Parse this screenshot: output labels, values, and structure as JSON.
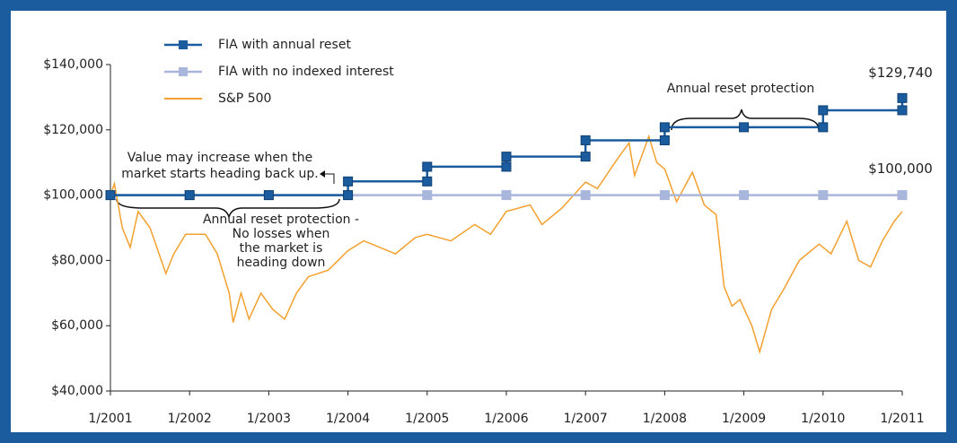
{
  "chart_data": {
    "type": "line",
    "xlim": [
      2001,
      2011
    ],
    "xticks": [
      {
        "value": 2001,
        "label": "1/2001"
      },
      {
        "value": 2002,
        "label": "1/2002"
      },
      {
        "value": 2003,
        "label": "1/2003"
      },
      {
        "value": 2004,
        "label": "1/2004"
      },
      {
        "value": 2005,
        "label": "1/2005"
      },
      {
        "value": 2006,
        "label": "1/2006"
      },
      {
        "value": 2007,
        "label": "1/2007"
      },
      {
        "value": 2008,
        "label": "1/2008"
      },
      {
        "value": 2009,
        "label": "1/2009"
      },
      {
        "value": 2010,
        "label": "1/2010"
      },
      {
        "value": 2011,
        "label": "1/2011"
      }
    ],
    "ylim": [
      40000,
      140000
    ],
    "yticks": [
      {
        "value": 40000,
        "label": "$40,000"
      },
      {
        "value": 60000,
        "label": "$60,000"
      },
      {
        "value": 80000,
        "label": "$80,000"
      },
      {
        "value": 100000,
        "label": "$100,000"
      },
      {
        "value": 120000,
        "label": "$120,000"
      },
      {
        "value": 140000,
        "label": "$140,000"
      }
    ],
    "series": [
      {
        "name": "FIA with annual reset",
        "color": "#1b5c9e",
        "markers": true,
        "x": [
          2001,
          2002,
          2003,
          2004,
          2004,
          2005,
          2005,
          2006,
          2006,
          2007,
          2007,
          2008,
          2008,
          2009,
          2010,
          2010,
          2011,
          2011
        ],
        "values": [
          100000,
          100000,
          100000,
          100000,
          104200,
          104200,
          108700,
          108700,
          111800,
          111800,
          116800,
          116800,
          120800,
          120800,
          120800,
          126000,
          126000,
          129740
        ],
        "value_labels": [
          null,
          null,
          null,
          null,
          null,
          null,
          null,
          null,
          null,
          null,
          null,
          null,
          null,
          null,
          null,
          null,
          null,
          "$129,740"
        ]
      },
      {
        "name": "FIA with no indexed interest",
        "color": "#a9b6dc",
        "markers": true,
        "x": [
          2001,
          2002,
          2003,
          2004,
          2005,
          2006,
          2007,
          2008,
          2009,
          2010,
          2011
        ],
        "values": [
          100000,
          100000,
          100000,
          100000,
          100000,
          100000,
          100000,
          100000,
          100000,
          100000,
          100000
        ],
        "value_labels": [
          null,
          null,
          null,
          null,
          null,
          null,
          null,
          null,
          null,
          null,
          "$100,000"
        ]
      },
      {
        "name": "S&P 500",
        "color": "#f4a02f",
        "markers": false,
        "x": [
          2001.0,
          2001.05,
          2001.15,
          2001.25,
          2001.35,
          2001.5,
          2001.7,
          2001.8,
          2001.95,
          2002.2,
          2002.35,
          2002.5,
          2002.55,
          2002.65,
          2002.75,
          2002.9,
          2003.05,
          2003.2,
          2003.35,
          2003.5,
          2003.75,
          2004.0,
          2004.2,
          2004.4,
          2004.6,
          2004.85,
          2005.0,
          2005.3,
          2005.6,
          2005.8,
          2006.0,
          2006.3,
          2006.45,
          2006.7,
          2007.0,
          2007.15,
          2007.4,
          2007.55,
          2007.62,
          2007.8,
          2007.9,
          2008.0,
          2008.15,
          2008.35,
          2008.5,
          2008.65,
          2008.75,
          2008.85,
          2008.95,
          2009.1,
          2009.2,
          2009.35,
          2009.5,
          2009.7,
          2009.95,
          2010.1,
          2010.3,
          2010.45,
          2010.6,
          2010.75,
          2010.9,
          2011.0
        ],
        "values": [
          100000,
          103500,
          90000,
          84000,
          95000,
          90000,
          76000,
          82000,
          88000,
          88000,
          82000,
          70000,
          61000,
          70000,
          62000,
          70000,
          65000,
          62000,
          70000,
          75000,
          77000,
          83000,
          86000,
          84000,
          82000,
          87000,
          88000,
          86000,
          91000,
          88000,
          95000,
          97000,
          91000,
          96000,
          104000,
          102000,
          111000,
          116000,
          106000,
          118000,
          110000,
          108000,
          98000,
          107000,
          97000,
          94000,
          72000,
          66000,
          68000,
          60000,
          52000,
          65000,
          71000,
          80000,
          85000,
          82000,
          92000,
          80000,
          78000,
          86000,
          92000,
          95000
        ]
      }
    ],
    "annotations": [
      {
        "lines": [
          "Value may increase when the",
          "market starts heading back up."
        ]
      },
      {
        "lines": [
          "Annual reset protection -",
          "No losses when",
          "the market is",
          "heading down"
        ]
      },
      {
        "lines": [
          "Annual reset protection"
        ]
      }
    ]
  }
}
